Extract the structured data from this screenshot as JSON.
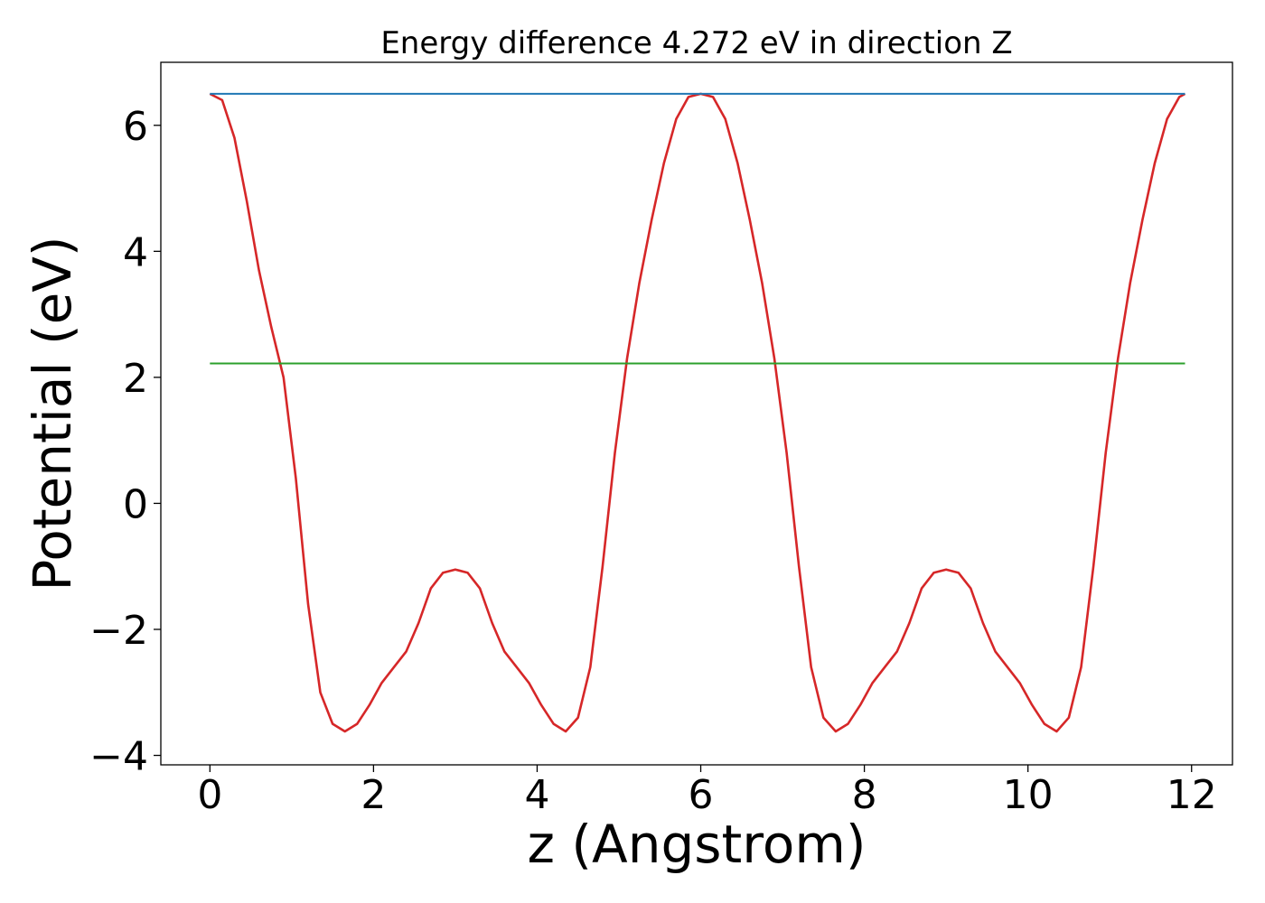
{
  "chart_data": {
    "type": "line",
    "title": "Energy difference 4.272 eV in direction Z",
    "xlabel": "z (Angstrom)",
    "ylabel": "Potential (eV)",
    "xlim": [
      -0.6,
      12.5
    ],
    "ylim": [
      -4.15,
      7.0
    ],
    "xticks": [
      0,
      2,
      4,
      6,
      8,
      10,
      12
    ],
    "xtick_labels": [
      "0",
      "2",
      "4",
      "6",
      "8",
      "10",
      "12"
    ],
    "yticks": [
      -4,
      -2,
      0,
      2,
      4,
      6
    ],
    "ytick_labels": [
      "−4",
      "−2",
      "0",
      "2",
      "4",
      "6"
    ],
    "grid": false,
    "series": [
      {
        "color": "#d62728",
        "x": [
          0.0,
          0.15,
          0.3,
          0.45,
          0.6,
          0.75,
          0.9,
          1.05,
          1.2,
          1.35,
          1.5,
          1.65,
          1.8,
          1.95,
          2.1,
          2.25,
          2.4,
          2.55,
          2.7,
          2.85,
          3.0,
          3.15,
          3.3,
          3.45,
          3.6,
          3.75,
          3.9,
          4.05,
          4.2,
          4.35,
          4.5,
          4.65,
          4.8,
          4.95,
          5.1,
          5.25,
          5.4,
          5.55,
          5.7,
          5.85,
          6.0,
          6.15,
          6.3,
          6.45,
          6.6,
          6.75,
          6.9,
          7.05,
          7.2,
          7.35,
          7.5,
          7.65,
          7.8,
          7.95,
          8.1,
          8.25,
          8.4,
          8.55,
          8.7,
          8.85,
          9.0,
          9.15,
          9.3,
          9.45,
          9.6,
          9.75,
          9.9,
          10.05,
          10.2,
          10.35,
          10.5,
          10.65,
          10.8,
          10.95,
          11.1,
          11.25,
          11.4,
          11.55,
          11.7,
          11.85,
          11.92
        ],
        "y": [
          6.5,
          6.4,
          5.8,
          4.8,
          3.7,
          2.8,
          2.0,
          0.4,
          -1.6,
          -3.0,
          -3.5,
          -3.62,
          -3.5,
          -3.2,
          -2.85,
          -2.6,
          -2.35,
          -1.9,
          -1.35,
          -1.1,
          -1.05,
          -1.1,
          -1.35,
          -1.9,
          -2.35,
          -2.6,
          -2.85,
          -3.2,
          -3.5,
          -3.62,
          -3.4,
          -2.6,
          -1.0,
          0.8,
          2.3,
          3.5,
          4.5,
          5.4,
          6.1,
          6.45,
          6.5,
          6.45,
          6.1,
          5.4,
          4.5,
          3.5,
          2.3,
          0.8,
          -1.0,
          -2.6,
          -3.4,
          -3.62,
          -3.5,
          -3.2,
          -2.85,
          -2.6,
          -2.35,
          -1.9,
          -1.35,
          -1.1,
          -1.05,
          -1.1,
          -1.35,
          -1.9,
          -2.35,
          -2.6,
          -2.85,
          -3.2,
          -3.5,
          -3.62,
          -3.4,
          -2.6,
          -1.0,
          0.8,
          2.3,
          3.5,
          4.5,
          5.4,
          6.1,
          6.45,
          6.5
        ]
      },
      {
        "color": "#1f77b4",
        "x": [
          0.0,
          11.92
        ],
        "y": [
          6.5,
          6.5
        ]
      },
      {
        "color": "#2ca02c",
        "x": [
          0.0,
          11.92
        ],
        "y": [
          2.22,
          2.22
        ]
      }
    ]
  }
}
